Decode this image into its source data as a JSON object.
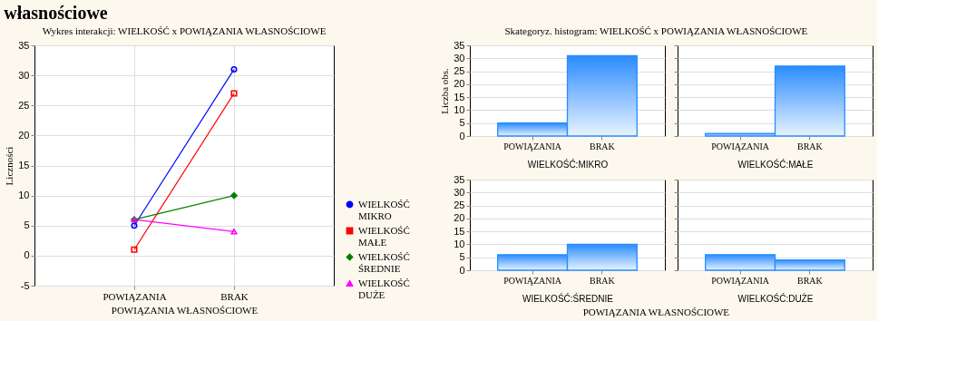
{
  "chart_data": [
    {
      "type": "line",
      "title": "Wykres interakcji: WIELKOŚĆ x POWIĄZANIA WŁASNOŚCIOWE",
      "xlabel": "POWIĄZANIA WŁASNOŚCIOWE",
      "ylabel": "Liczności",
      "annotations": [
        "własnościowe"
      ],
      "categories": [
        "POWIĄZANIA",
        "BRAK"
      ],
      "ylim": [
        -5,
        35
      ],
      "yticks": [
        -5,
        0,
        5,
        10,
        15,
        20,
        25,
        30,
        35
      ],
      "grid": true,
      "legend": "bottom right",
      "series": [
        {
          "name": "WIELKOŚĆ MIKRO",
          "color": "#0000ff",
          "marker": "circle",
          "values": [
            5,
            31
          ]
        },
        {
          "name": "WIELKOŚĆ MAŁE",
          "color": "#ff0000",
          "marker": "square",
          "values": [
            1,
            27
          ]
        },
        {
          "name": "WIELKOŚĆ ŚREDNIE",
          "color": "#008000",
          "marker": "diamond",
          "values": [
            6,
            10
          ]
        },
        {
          "name": "WIELKOŚĆ DUŻE",
          "color": "#ff00ff",
          "marker": "triangle",
          "values": [
            6,
            4
          ]
        }
      ]
    },
    {
      "type": "bar",
      "title": "Skategoryz. histogram: WIELKOŚĆ x POWIĄZANIA WŁASNOŚCIOWE",
      "ylabel": "Liczba obs.",
      "xlabel": "WIELKOŚĆ:MIKRO",
      "categories": [
        "POWIĄZANIA",
        "BRAK"
      ],
      "values": [
        5,
        31
      ],
      "color": "#2a8cff",
      "ylim": [
        0,
        35
      ],
      "yticks": [
        0,
        5,
        10,
        15,
        20,
        25,
        30,
        35
      ],
      "grid": "y"
    },
    {
      "type": "bar",
      "xlabel": "WIELKOŚĆ:MAŁE",
      "categories": [
        "POWIĄZANIA",
        "BRAK"
      ],
      "values": [
        1,
        27
      ],
      "color": "#2a8cff",
      "ylim": [
        0,
        35
      ],
      "yticks": [
        0,
        5,
        10,
        15,
        20,
        25,
        30,
        35
      ],
      "grid": "y",
      "tick_labels": "x"
    },
    {
      "type": "bar",
      "xlabel": "WIELKOŚĆ:ŚREDNIE",
      "annotations": [
        "POWIĄZANIA WŁASNOŚCIOWE"
      ],
      "categories": [
        "POWIĄZANIA",
        "BRAK"
      ],
      "values": [
        6,
        10
      ],
      "color": "#2a8cff",
      "ylim": [
        0,
        35
      ],
      "yticks": [
        0,
        5,
        10,
        15,
        20,
        25,
        30,
        35
      ],
      "grid": "y"
    },
    {
      "type": "bar",
      "xlabel": "WIELKOŚĆ:DUŻE",
      "categories": [
        "POWIĄZANIA",
        "BRAK"
      ],
      "values": [
        6,
        4
      ],
      "color": "#2a8cff",
      "ylim": [
        0,
        35
      ],
      "yticks": [
        0,
        5,
        10,
        15,
        20,
        25,
        30,
        35
      ],
      "grid": "y",
      "tick_labels": "x"
    }
  ]
}
